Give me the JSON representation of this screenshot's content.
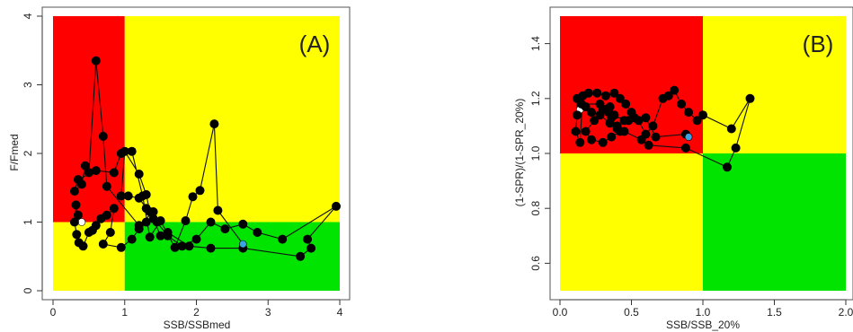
{
  "colors": {
    "red": "#ff0000",
    "yellow": "#ffff00",
    "green": "#00e400",
    "point": "#000000",
    "start_point": "#ffffff",
    "end_point": "#3ba3e3"
  },
  "chart_data": [
    {
      "type": "scatter",
      "panel_label": "(A)",
      "xlabel": "SSB/SSBmed",
      "ylabel": "F/Fmed",
      "xlim": [
        0,
        4
      ],
      "ylim": [
        0,
        4
      ],
      "x_ticks": [
        0,
        1,
        2,
        3,
        4
      ],
      "y_ticks": [
        0,
        1,
        2,
        3,
        4
      ],
      "x_tick_labels": [
        "0",
        "1",
        "2",
        "3",
        "4"
      ],
      "y_tick_labels": [
        "0",
        "1",
        "2",
        "3",
        "4"
      ],
      "x_ref": 1,
      "y_ref": 1,
      "quadrants": {
        "top_left": "red",
        "top_right": "yellow",
        "bottom_left": "yellow",
        "bottom_right": "green"
      },
      "series": [
        {
          "points": [
            [
              0.4,
              1.0
            ],
            [
              0.35,
              1.1
            ],
            [
              0.32,
              1.25
            ],
            [
              0.3,
              1.0
            ],
            [
              0.33,
              0.82
            ],
            [
              0.36,
              0.7
            ],
            [
              0.42,
              0.65
            ],
            [
              0.5,
              0.85
            ],
            [
              0.55,
              0.88
            ],
            [
              0.6,
              0.95
            ],
            [
              0.67,
              1.05
            ],
            [
              0.75,
              1.1
            ],
            [
              0.85,
              1.2
            ],
            [
              0.8,
              0.85
            ],
            [
              0.7,
              0.68
            ],
            [
              0.95,
              0.63
            ],
            [
              1.1,
              0.75
            ],
            [
              1.2,
              0.9
            ],
            [
              1.3,
              1.0
            ],
            [
              1.4,
              1.05
            ],
            [
              1.5,
              0.8
            ],
            [
              1.6,
              0.85
            ],
            [
              1.9,
              0.65
            ],
            [
              2.2,
              0.62
            ],
            [
              2.65,
              0.62
            ],
            [
              3.45,
              0.5
            ],
            [
              3.6,
              0.62
            ],
            [
              3.55,
              0.75
            ],
            [
              3.95,
              1.23
            ],
            [
              3.2,
              0.75
            ],
            [
              2.85,
              0.85
            ],
            [
              2.65,
              0.97
            ],
            [
              2.4,
              0.9
            ],
            [
              2.2,
              1.0
            ],
            [
              2.0,
              0.75
            ],
            [
              1.8,
              0.65
            ],
            [
              1.6,
              0.8
            ],
            [
              1.45,
              1.0
            ],
            [
              1.35,
              1.15
            ],
            [
              1.3,
              1.4
            ],
            [
              1.2,
              1.7
            ],
            [
              1.0,
              2.03
            ],
            [
              0.95,
              1.38
            ],
            [
              1.05,
              1.38
            ],
            [
              1.2,
              1.35
            ],
            [
              1.3,
              1.2
            ],
            [
              1.4,
              1.15
            ],
            [
              1.2,
              0.95
            ],
            [
              0.75,
              1.52
            ],
            [
              0.7,
              2.25
            ],
            [
              0.6,
              3.35
            ],
            [
              0.5,
              1.72
            ],
            [
              0.45,
              1.82
            ],
            [
              0.4,
              1.55
            ],
            [
              0.3,
              1.45
            ],
            [
              0.35,
              1.62
            ],
            [
              0.6,
              1.75
            ],
            [
              0.85,
              1.72
            ],
            [
              0.95,
              2.0
            ],
            [
              1.1,
              2.03
            ],
            [
              1.25,
              1.38
            ],
            [
              1.35,
              0.78
            ],
            [
              1.5,
              1.02
            ],
            [
              1.7,
              0.63
            ],
            [
              1.85,
              1.02
            ],
            [
              1.95,
              1.37
            ],
            [
              2.05,
              1.46
            ],
            [
              2.25,
              2.43
            ],
            [
              2.3,
              1.17
            ],
            [
              2.65,
              0.68
            ]
          ]
        }
      ]
    },
    {
      "type": "scatter",
      "panel_label": "(B)",
      "xlabel": "SSB/SSB_20%",
      "ylabel": "(1-SPR)/(1-SPR_20%)",
      "xlim": [
        0,
        2
      ],
      "ylim": [
        0.5,
        1.5
      ],
      "x_ticks": [
        0.0,
        0.5,
        1.0,
        1.5,
        2.0
      ],
      "y_ticks": [
        0.6,
        0.8,
        1.0,
        1.2,
        1.4
      ],
      "x_tick_labels": [
        "0.0",
        "0.5",
        "1.0",
        "1.5",
        "2.0"
      ],
      "y_tick_labels": [
        "0.6",
        "0.8",
        "1.0",
        "1.2",
        "1.4"
      ],
      "x_ref": 1,
      "y_ref": 1,
      "quadrants": {
        "top_left": "red",
        "top_right": "yellow",
        "bottom_left": "yellow",
        "bottom_right": "green"
      },
      "series": [
        {
          "points": [
            [
              0.14,
              1.16
            ],
            [
              0.12,
              1.2
            ],
            [
              0.12,
              1.14
            ],
            [
              0.11,
              1.08
            ],
            [
              0.14,
              1.04
            ],
            [
              0.16,
              1.21
            ],
            [
              0.2,
              1.22
            ],
            [
              0.26,
              1.22
            ],
            [
              0.32,
              1.21
            ],
            [
              0.38,
              1.22
            ],
            [
              0.42,
              1.2
            ],
            [
              0.46,
              1.18
            ],
            [
              0.5,
              1.15
            ],
            [
              0.48,
              1.12
            ],
            [
              0.4,
              1.1
            ],
            [
              0.42,
              1.08
            ],
            [
              0.36,
              1.06
            ],
            [
              0.3,
              1.04
            ],
            [
              0.22,
              1.05
            ],
            [
              0.18,
              1.08
            ],
            [
              0.24,
              1.12
            ],
            [
              0.3,
              1.16
            ],
            [
              0.35,
              1.17
            ],
            [
              0.38,
              1.14
            ],
            [
              0.45,
              1.12
            ],
            [
              0.52,
              1.13
            ],
            [
              0.55,
              1.12
            ],
            [
              0.6,
              1.07
            ],
            [
              0.65,
              1.1
            ],
            [
              0.72,
              1.2
            ],
            [
              0.76,
              1.21
            ],
            [
              0.8,
              1.23
            ],
            [
              0.85,
              1.18
            ],
            [
              0.9,
              1.15
            ],
            [
              0.96,
              1.12
            ],
            [
              1.0,
              1.14
            ],
            [
              1.2,
              1.09
            ],
            [
              1.33,
              1.2
            ],
            [
              1.23,
              1.02
            ],
            [
              1.17,
              0.95
            ],
            [
              0.88,
              1.02
            ],
            [
              0.62,
              1.03
            ],
            [
              0.57,
              1.05
            ],
            [
              0.45,
              1.08
            ],
            [
              0.4,
              1.09
            ],
            [
              0.35,
              1.11
            ],
            [
              0.28,
              1.14
            ],
            [
              0.22,
              1.15
            ],
            [
              0.18,
              1.17
            ],
            [
              0.15,
              1.18
            ],
            [
              0.28,
              1.18
            ],
            [
              0.32,
              1.16
            ],
            [
              0.34,
              1.15
            ],
            [
              0.36,
              1.13
            ],
            [
              0.6,
              1.13
            ],
            [
              0.67,
              1.06
            ],
            [
              0.88,
              1.07
            ],
            [
              0.9,
              1.06
            ]
          ]
        }
      ]
    }
  ]
}
